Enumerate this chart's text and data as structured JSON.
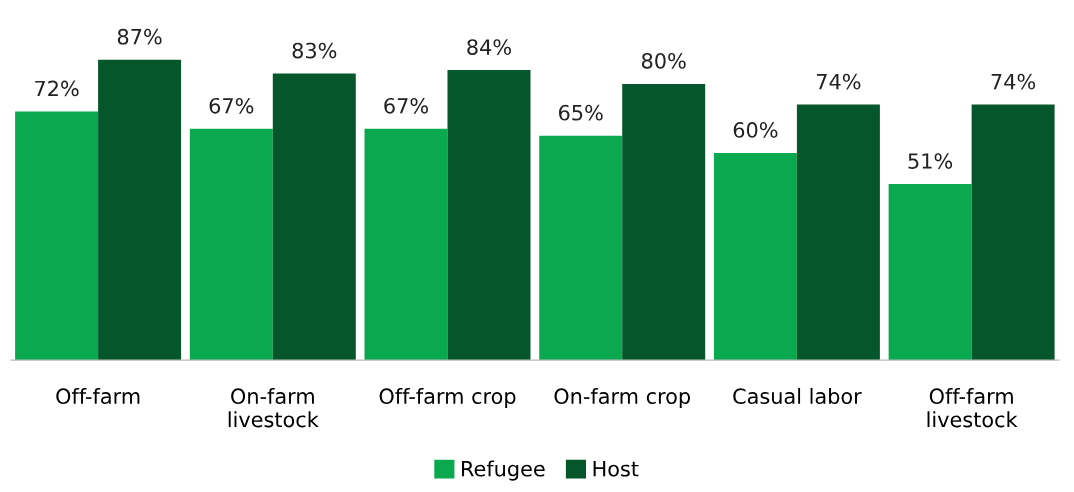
{
  "chart_data": {
    "type": "bar",
    "categories": [
      "Off-farm",
      "On-farm livestock",
      "Off-farm crop",
      "On-farm crop",
      "Casual labor",
      "Off-farm livestock"
    ],
    "series": [
      {
        "name": "Refugee",
        "color": "#0aa84f",
        "values": [
          72,
          67,
          67,
          65,
          60,
          51
        ],
        "value_labels": [
          "72%",
          "67%",
          "67%",
          "65%",
          "60%",
          "51%"
        ]
      },
      {
        "name": "Host",
        "color": "#05562a",
        "values": [
          87,
          83,
          84,
          80,
          74,
          74
        ],
        "value_labels": [
          "87%",
          "83%",
          "84%",
          "80%",
          "74%",
          "74%"
        ]
      }
    ],
    "legend": "bottom"
  }
}
